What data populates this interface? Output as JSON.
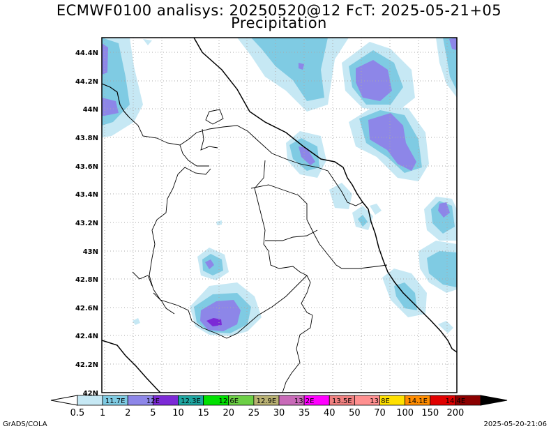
{
  "title_line1": "ECMWF0100 analisys: 20250520@12 FcT: 2025-05-21+05",
  "title_line2": "Precipitation",
  "lat_labels": [
    "44.4N",
    "44.2N",
    "44N",
    "43.8N",
    "43.6N",
    "43.4N",
    "43.2N",
    "43N",
    "42.8N",
    "42.6N",
    "42.4N",
    "42.2N",
    "42N"
  ],
  "colorbar": {
    "colors": [
      "#c6e8f4",
      "#7fcbe3",
      "#8d86e8",
      "#7c2ad6",
      "#1ea5a0",
      "#00e000",
      "#6ccf45",
      "#b8b072",
      "#c86ab8",
      "#ff00ff",
      "#f08080",
      "#ff9090",
      "#ffe000",
      "#ff8c00",
      "#e00000",
      "#8b0000"
    ],
    "ticks": [
      "0.5",
      "1",
      "2",
      "5",
      "10",
      "15",
      "20",
      "25",
      "30",
      "35",
      "40",
      "50",
      "70",
      "100",
      "150",
      "200"
    ],
    "inner_labels": [
      "11.7E",
      "12E",
      "12.3E",
      "12.6E",
      "12.9E",
      "13.2E",
      "13.5E",
      "13.8E",
      "14.1E",
      "14.4E"
    ]
  },
  "footer_left": "GrADS/COLA",
  "footer_right": "2025-05-20-21:06"
}
